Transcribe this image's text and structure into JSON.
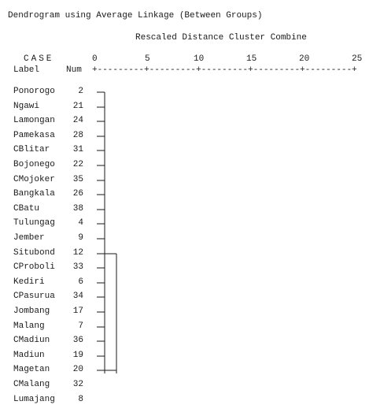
{
  "title": "Dendrogram using Average Linkage (Between Groups)",
  "subtitle": "Rescaled Distance Cluster Combine",
  "case_header": "CASE",
  "label_header": "Label",
  "num_header": "Num",
  "ticks": [
    "0",
    "5",
    "10",
    "15",
    "20",
    "25"
  ],
  "ruler": "+---------+---------+---------+---------+---------+",
  "rows": [
    {
      "label": "Ponorogo",
      "num": "2"
    },
    {
      "label": "Ngawi",
      "num": "21"
    },
    {
      "label": "Lamongan",
      "num": "24"
    },
    {
      "label": "Pamekasa",
      "num": "28"
    },
    {
      "label": "CBlitar",
      "num": "31"
    },
    {
      "label": "Bojonego",
      "num": "22"
    },
    {
      "label": "CMojoker",
      "num": "35"
    },
    {
      "label": "Bangkala",
      "num": "26"
    },
    {
      "label": "CBatu",
      "num": "38"
    },
    {
      "label": "Tulungag",
      "num": "4"
    },
    {
      "label": "Jember",
      "num": "9"
    },
    {
      "label": "Situbond",
      "num": "12"
    },
    {
      "label": "CProboli",
      "num": "33"
    },
    {
      "label": "Kediri",
      "num": "6"
    },
    {
      "label": "CPasurua",
      "num": "34"
    },
    {
      "label": "Jombang",
      "num": "17"
    },
    {
      "label": "Malang",
      "num": "7"
    },
    {
      "label": "CMadiun",
      "num": "36"
    },
    {
      "label": "Madiun",
      "num": "19"
    },
    {
      "label": "Magetan",
      "num": "20"
    },
    {
      "label": "CMalang",
      "num": "32"
    },
    {
      "label": "Lumajang",
      "num": "8"
    }
  ]
}
